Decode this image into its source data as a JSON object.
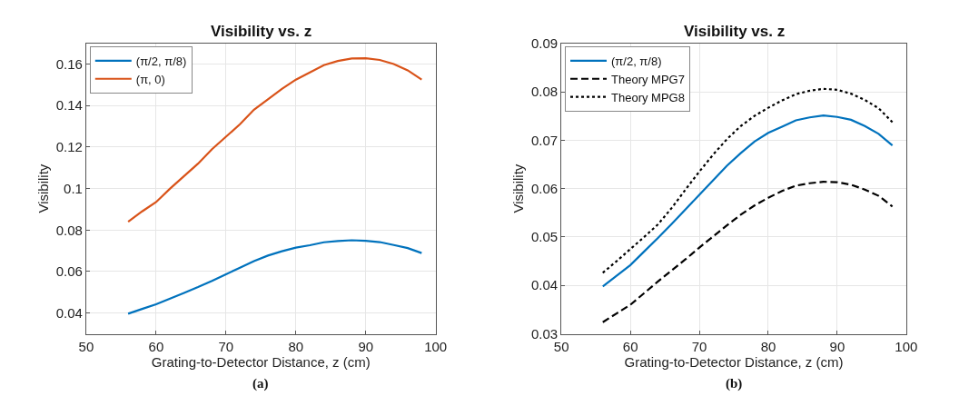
{
  "chart_data": [
    {
      "type": "line",
      "title": "Visibility vs. z",
      "xlabel": "Grating-to-Detector Distance, z (cm)",
      "ylabel": "Visibility",
      "annotations": [
        "(a)"
      ],
      "x": [
        56,
        58,
        60,
        62,
        64,
        66,
        68,
        70,
        72,
        74,
        76,
        78,
        80,
        82,
        84,
        86,
        88,
        90,
        92,
        94,
        96,
        98
      ],
      "series": [
        {
          "name": "(π/2, π/8)",
          "color": "#0072bd",
          "line_style": "solid",
          "values": [
            0.0397,
            0.042,
            0.0442,
            0.047,
            0.0497,
            0.0525,
            0.0555,
            0.0587,
            0.0618,
            0.065,
            0.0677,
            0.0698,
            0.0715,
            0.0727,
            0.0741,
            0.0747,
            0.0751,
            0.0748,
            0.0742,
            0.0728,
            0.0713,
            0.0689
          ]
        },
        {
          "name": "(π, 0)",
          "color": "#d95319",
          "line_style": "solid",
          "values": [
            0.084,
            0.089,
            0.0935,
            0.1,
            0.106,
            0.112,
            0.119,
            0.125,
            0.131,
            0.138,
            0.143,
            0.148,
            0.1525,
            0.156,
            0.1595,
            0.1615,
            0.1627,
            0.1628,
            0.162,
            0.16,
            0.157,
            0.1525
          ]
        }
      ],
      "xlim": [
        50,
        100
      ],
      "xticks": [
        50,
        60,
        70,
        80,
        90,
        100
      ],
      "ylim": [
        0.03,
        0.17
      ],
      "yticks": [
        0.04,
        0.06,
        0.08,
        0.1,
        0.12,
        0.14,
        0.16
      ],
      "grid": true,
      "legend": "top left",
      "marker": "none"
    },
    {
      "type": "line",
      "title": "Visibility vs. z",
      "xlabel": "Grating-to-Detector Distance, z (cm)",
      "ylabel": "Visibility",
      "annotations": [
        "(b)"
      ],
      "x": [
        56,
        58,
        60,
        62,
        64,
        66,
        68,
        70,
        72,
        74,
        76,
        78,
        80,
        82,
        84,
        86,
        88,
        90,
        92,
        94,
        96,
        98
      ],
      "series": [
        {
          "name": "(π/2, π/8)",
          "color": "#0072bd",
          "line_style": "solid",
          "values": [
            0.0398,
            0.042,
            0.0442,
            0.047,
            0.0498,
            0.0527,
            0.0557,
            0.0587,
            0.0617,
            0.0647,
            0.0673,
            0.0697,
            0.0715,
            0.0728,
            0.0741,
            0.0747,
            0.0751,
            0.0748,
            0.0742,
            0.0729,
            0.0713,
            0.0689
          ]
        },
        {
          "name": "Theory MPG7",
          "color": "#000000",
          "line_style": "dashed",
          "values": [
            0.0324,
            0.0342,
            0.036,
            0.0384,
            0.0408,
            0.0431,
            0.0454,
            0.0478,
            0.0501,
            0.0524,
            0.0546,
            0.0565,
            0.0581,
            0.0595,
            0.0606,
            0.0611,
            0.0614,
            0.0613,
            0.0608,
            0.0598,
            0.0585,
            0.0563
          ]
        },
        {
          "name": "Theory MPG8",
          "color": "#000000",
          "line_style": "dotted",
          "values": [
            0.0426,
            0.045,
            0.0475,
            0.05,
            0.0526,
            0.056,
            0.0598,
            0.0635,
            0.067,
            0.0702,
            0.0729,
            0.075,
            0.0767,
            0.0782,
            0.0795,
            0.0802,
            0.0806,
            0.0804,
            0.0796,
            0.0783,
            0.0766,
            0.0737
          ]
        }
      ],
      "xlim": [
        50,
        100
      ],
      "xticks": [
        50,
        60,
        70,
        80,
        90,
        100
      ],
      "ylim": [
        0.03,
        0.09
      ],
      "yticks": [
        0.03,
        0.04,
        0.05,
        0.06,
        0.07,
        0.08,
        0.09
      ],
      "grid": true,
      "legend": "top left",
      "marker": "none"
    }
  ]
}
